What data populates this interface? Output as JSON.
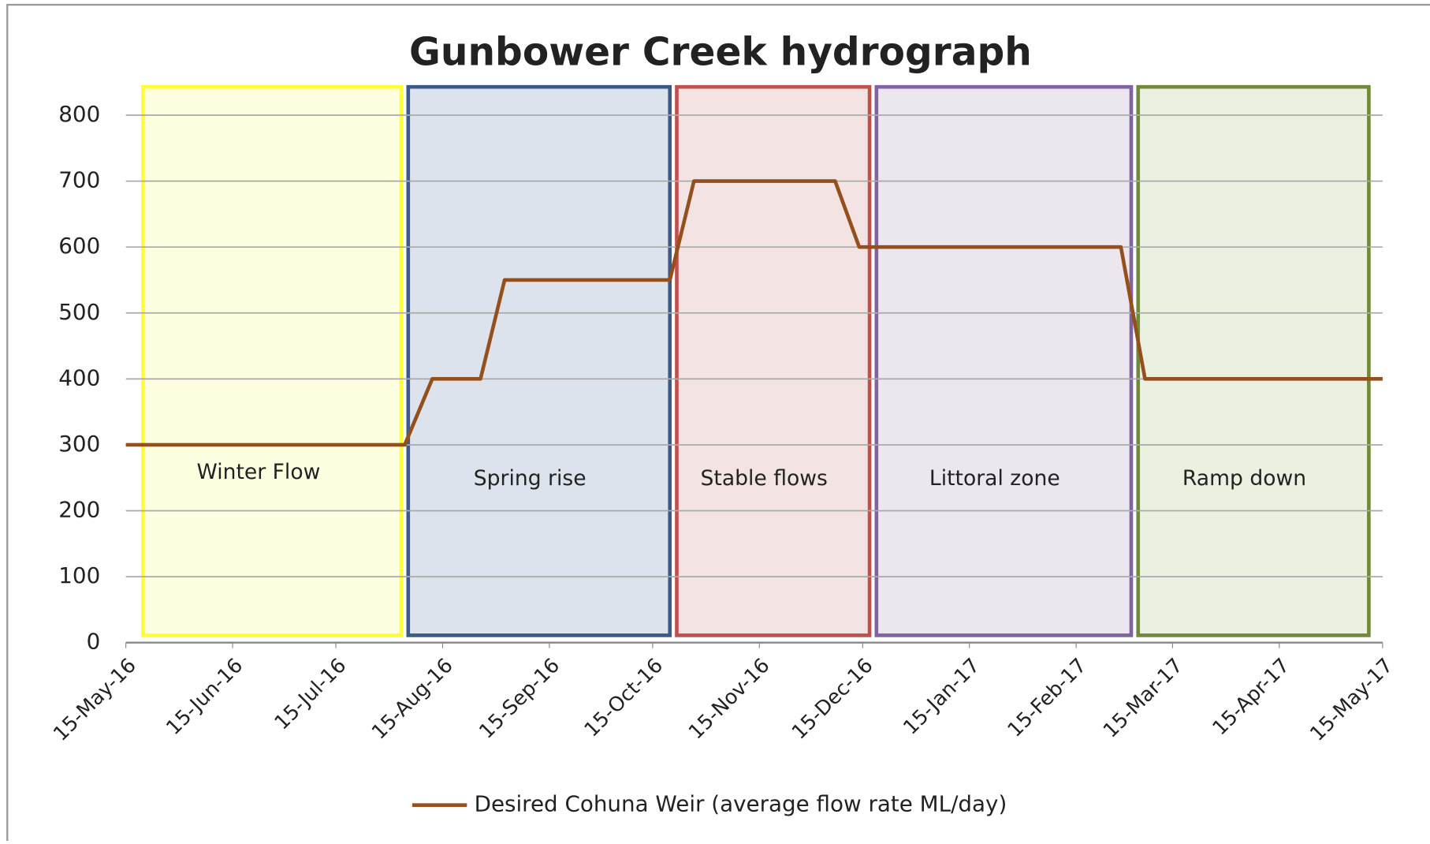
{
  "chart_data": {
    "type": "line",
    "title": "Gunbower Creek hydrograph",
    "x": [
      "2016-05-15",
      "2016-08-04",
      "2016-08-12",
      "2016-08-26",
      "2016-09-02",
      "2016-10-20",
      "2016-10-27",
      "2016-12-07",
      "2016-12-14",
      "2017-02-28",
      "2017-03-07",
      "2017-05-15"
    ],
    "series": [
      {
        "name": "Desired Cohuna Weir  (average flow rate ML/day)",
        "color": "#94501c",
        "values": [
          300,
          300,
          400,
          400,
          550,
          550,
          700,
          700,
          600,
          600,
          400,
          400
        ]
      }
    ],
    "ylim": [
      0,
      800
    ],
    "yticks": [
      0,
      100,
      200,
      300,
      400,
      500,
      600,
      700,
      800
    ],
    "xlim": [
      "2016-05-15",
      "2017-05-15"
    ],
    "xticks": [
      {
        "value": "2016-05-15",
        "label": "15-May-16"
      },
      {
        "value": "2016-06-15",
        "label": "15-Jun-16"
      },
      {
        "value": "2016-07-15",
        "label": "15-Jul-16"
      },
      {
        "value": "2016-08-15",
        "label": "15-Aug-16"
      },
      {
        "value": "2016-09-15",
        "label": "15-Sep-16"
      },
      {
        "value": "2016-10-15",
        "label": "15-Oct-16"
      },
      {
        "value": "2016-11-15",
        "label": "15-Nov-16"
      },
      {
        "value": "2016-12-15",
        "label": "15-Dec-16"
      },
      {
        "value": "2017-01-15",
        "label": "15-Jan-17"
      },
      {
        "value": "2017-02-15",
        "label": "15-Feb-17"
      },
      {
        "value": "2017-03-15",
        "label": "15-Mar-17"
      },
      {
        "value": "2017-04-15",
        "label": "15-Apr-17"
      },
      {
        "value": "2017-05-15",
        "label": "15-May-17"
      }
    ],
    "grid": true,
    "legend": "bottom",
    "phases": [
      {
        "label": "Winter Flow",
        "start": "2016-05-20",
        "end": "2016-08-03",
        "color": "#ffff33",
        "fill": "#fefee0"
      },
      {
        "label": "Spring rise",
        "start": "2016-08-05",
        "end": "2016-10-20",
        "color": "#3b5a8a",
        "fill": "#dde3ec"
      },
      {
        "label": "Stable flows",
        "start": "2016-10-22",
        "end": "2016-12-17",
        "color": "#c0504d",
        "fill": "#f4e3e3"
      },
      {
        "label": "Littoral zone",
        "start": "2016-12-19",
        "end": "2017-03-03",
        "color": "#8064a2",
        "fill": "#ece6ef"
      },
      {
        "label": "Ramp down",
        "start": "2017-03-05",
        "end": "2017-05-11",
        "color": "#6f8b3a",
        "fill": "#ebf1e0"
      }
    ]
  }
}
